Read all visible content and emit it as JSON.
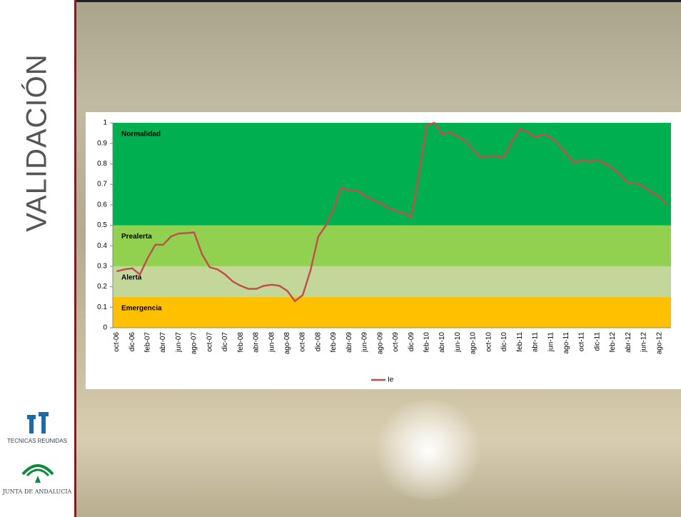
{
  "slide_title": "VALIDACIÓN",
  "logos": [
    "TECNICAS REUNIDAS",
    "JUNTA DE ANDALUCIA"
  ],
  "chart_data": {
    "type": "line",
    "categories": [
      "oct-06",
      null,
      "dic-06",
      null,
      "feb-07",
      null,
      "abr-07",
      null,
      "jun-07",
      null,
      "ago-07",
      null,
      "oct-07",
      null,
      "dic-07",
      null,
      "feb-08",
      null,
      "abr-08",
      null,
      "jun-08",
      null,
      "ago-08",
      null,
      "oct-08",
      null,
      "dic-08",
      null,
      "feb-09",
      null,
      "abr-09",
      null,
      "jun-09",
      null,
      "ago-09",
      null,
      "oct-09",
      null,
      "dic-09",
      null,
      "feb-10",
      null,
      "abr-10",
      null,
      "jun-10",
      null,
      "ago-10",
      null,
      "oct-10",
      null,
      "dic-10",
      null,
      "feb-11",
      null,
      "abr-11",
      null,
      "jun-11",
      null,
      "ago-11",
      null,
      "oct-11",
      null,
      "dic-11",
      null,
      "feb-12",
      null,
      "abr-12",
      null,
      "jun-12",
      null,
      "ago-12",
      null
    ],
    "series": [
      {
        "name": "Ie",
        "color": "#c0504d",
        "values": [
          0.275,
          0.285,
          0.29,
          0.26,
          0.34,
          0.405,
          0.405,
          0.445,
          0.46,
          0.462,
          0.465,
          0.36,
          0.295,
          0.285,
          0.26,
          0.225,
          0.205,
          0.19,
          0.19,
          0.205,
          0.21,
          0.205,
          0.18,
          0.13,
          0.16,
          0.28,
          0.445,
          0.5,
          0.58,
          0.685,
          0.67,
          0.67,
          0.645,
          0.625,
          0.61,
          0.585,
          0.57,
          0.56,
          0.54,
          0.75,
          0.99,
          1.0,
          0.945,
          0.955,
          0.935,
          0.91,
          0.87,
          0.83,
          0.84,
          0.835,
          0.835,
          0.91,
          0.97,
          0.955,
          0.93,
          0.945,
          0.93,
          0.895,
          0.85,
          0.805,
          0.82,
          0.81,
          0.82,
          0.8,
          0.78,
          0.745,
          0.705,
          0.705,
          0.69,
          0.66,
          0.64,
          0.6
        ]
      }
    ],
    "bands": [
      {
        "label": "Normalidad",
        "from": 0.5,
        "to": 1,
        "color": "#00b050"
      },
      {
        "label": "Prealerta",
        "from": 0.3,
        "to": 0.5,
        "color": "#92d050"
      },
      {
        "label": "Alerta",
        "from": 0.15,
        "to": 0.3,
        "color": "#c4d79b"
      },
      {
        "label": "Emergencia",
        "from": 0,
        "to": 0.15,
        "color": "#ffc000"
      }
    ],
    "ylim": [
      0,
      1
    ],
    "yticks": [
      0,
      0.1,
      0.2,
      0.3,
      0.4,
      0.5,
      0.6,
      0.7,
      0.8,
      0.9,
      1
    ],
    "legend": "bottom"
  }
}
